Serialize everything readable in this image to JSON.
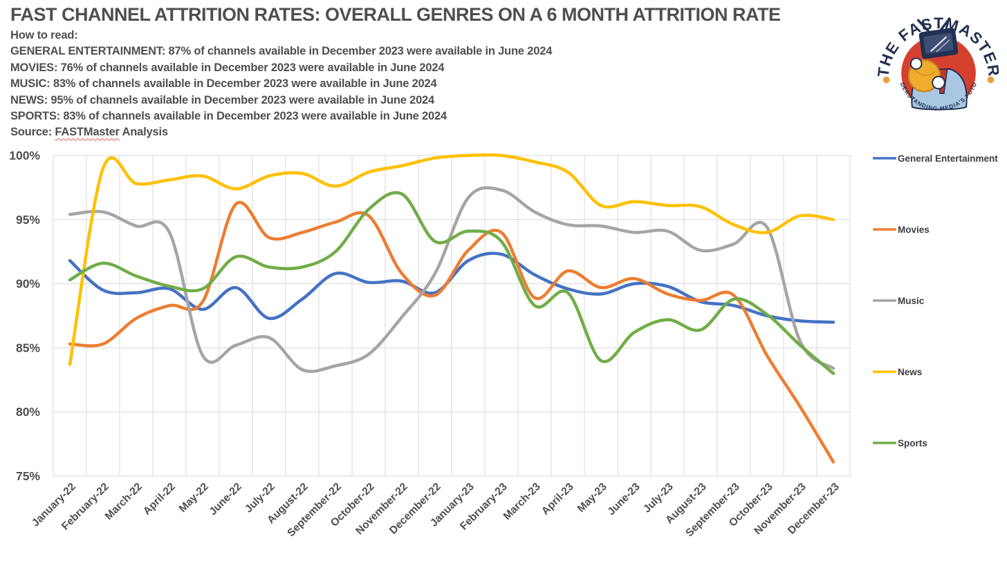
{
  "header": {
    "title": "FAST CHANNEL ATTRITION RATES: OVERALL GENRES ON A 6 MONTH ATTRITION RATE",
    "how_to_read_label": "How to read:",
    "genre_lines": [
      "GENERAL ENTERTAINMENT: 87% of channels available in December 2023 were available in June 2024",
      "MOVIES: 76% of channels available in December 2023 were available in June 2024",
      "MUSIC: 83% of channels available in December 2023 were available in June 2024",
      "NEWS: 95% of channels available in December 2023 were available in June 2024",
      "SPORTS: 83% of channels available in December 2023 were available in June 2024"
    ],
    "source_prefix": "Source: ",
    "source_word": "FASTMaster",
    "source_suffix": " Analysis"
  },
  "logo": {
    "top_text": "THE FASTMASTER",
    "bottom_text": "UNDERSTANDING MEDIA'S FUTURE",
    "colors": {
      "text_navy": "#223052",
      "badge_red": "#d6402f",
      "ball_yellow": "#f0ad2d",
      "jacket_blue": "#a9c6e3",
      "dot_gold": "#e8a33f"
    }
  },
  "chart_data": {
    "type": "line",
    "smooth": true,
    "grid": true,
    "legend_position": "right",
    "title": "",
    "xlabel": "",
    "ylabel": "",
    "ylim": [
      75,
      100
    ],
    "y_tick_step": 5,
    "y_tick_labels": [
      "75%",
      "80%",
      "85%",
      "90%",
      "95%",
      "100%"
    ],
    "categories": [
      "January-22",
      "February-22",
      "March-22",
      "April-22",
      "May-22",
      "June-22",
      "July-22",
      "August-22",
      "September-22",
      "October-22",
      "November-22",
      "December-22",
      "January-23",
      "February-23",
      "March-23",
      "April-23",
      "May-23",
      "June-23",
      "July-23",
      "August-23",
      "September-23",
      "October-23",
      "November-23",
      "December-23"
    ],
    "series": [
      {
        "name": "General Entertainment",
        "color": "#4472C4",
        "values": [
          91.8,
          89.5,
          89.3,
          89.6,
          88.0,
          89.7,
          87.3,
          88.8,
          90.8,
          90.1,
          90.2,
          89.3,
          91.8,
          92.3,
          90.7,
          89.6,
          89.2,
          90.0,
          89.8,
          88.6,
          88.3,
          87.5,
          87.1,
          87.0
        ]
      },
      {
        "name": "Movies",
        "color": "#ED7D31",
        "values": [
          85.3,
          85.3,
          87.3,
          88.3,
          88.6,
          96.2,
          93.6,
          94.0,
          94.8,
          95.3,
          90.8,
          89.1,
          92.6,
          94.0,
          88.9,
          91.0,
          89.7,
          90.4,
          89.2,
          88.7,
          89.1,
          84.4,
          80.4,
          76.1
        ]
      },
      {
        "name": "Music",
        "color": "#A5A5A5",
        "values": [
          95.4,
          95.6,
          94.5,
          94.0,
          84.4,
          85.2,
          85.8,
          83.3,
          83.6,
          84.5,
          87.4,
          90.8,
          96.7,
          97.3,
          95.6,
          94.6,
          94.5,
          94.0,
          94.1,
          92.6,
          93.1,
          94.4,
          85.5,
          83.4
        ]
      },
      {
        "name": "News",
        "color": "#FFC000",
        "values": [
          83.7,
          99.0,
          97.8,
          98.1,
          98.4,
          97.4,
          98.4,
          98.6,
          97.6,
          98.7,
          99.2,
          99.8,
          100.0,
          100.0,
          99.5,
          98.7,
          96.1,
          96.4,
          96.1,
          96.0,
          94.6,
          94.0,
          95.3,
          95.0
        ]
      },
      {
        "name": "Sports",
        "color": "#70AD47",
        "values": [
          90.3,
          91.6,
          90.6,
          89.8,
          89.6,
          92.1,
          91.3,
          91.3,
          92.5,
          95.8,
          97.0,
          93.3,
          94.1,
          93.3,
          88.3,
          89.3,
          84.0,
          86.2,
          87.2,
          86.4,
          88.8,
          87.6,
          85.2,
          83.0
        ]
      }
    ]
  },
  "style": {
    "text_color": "#4f4f4f",
    "legend_text_color": "#3d3d3d",
    "grid_color": "#d9d9d9"
  }
}
